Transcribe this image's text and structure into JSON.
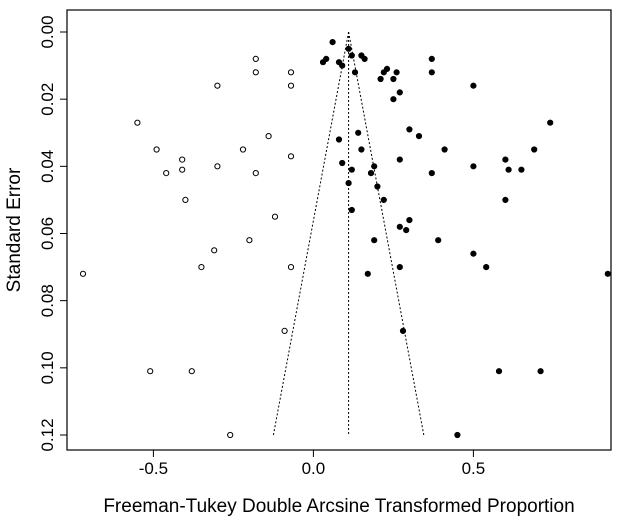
{
  "chart_data": {
    "type": "scatter",
    "title": "",
    "xlabel": "Freeman-Tukey Double Arcsine Transformed Proportion",
    "ylabel": "Standard Error",
    "xlim": [
      -0.77,
      0.93
    ],
    "ylim": [
      0.0,
      0.122
    ],
    "y_reversed": true,
    "x_ticks": [
      -0.5,
      0.0,
      0.5
    ],
    "x_tick_labels": [
      "-0.5",
      "0.0",
      "0.5"
    ],
    "y_ticks": [
      0.0,
      0.02,
      0.04,
      0.06,
      0.08,
      0.1,
      0.12
    ],
    "y_tick_labels": [
      "0.00",
      "0.02",
      "0.04",
      "0.06",
      "0.08",
      "0.10",
      "0.12"
    ],
    "y_tick_label_rotation": "vertical",
    "grid": false,
    "legend": "none",
    "pooled_estimate": 0.11,
    "funnel": {
      "apex": [
        0.11,
        0.0
      ],
      "base_se": 0.12,
      "lower_x": -0.125,
      "upper_x": 0.345
    },
    "series": [
      {
        "marker": "filled-circle",
        "color": "#000000",
        "points": [
          [
            0.06,
            0.003
          ],
          [
            0.11,
            0.005
          ],
          [
            0.12,
            0.007
          ],
          [
            0.15,
            0.007
          ],
          [
            0.04,
            0.008
          ],
          [
            0.16,
            0.008
          ],
          [
            0.03,
            0.009
          ],
          [
            0.08,
            0.009
          ],
          [
            0.37,
            0.008
          ],
          [
            0.09,
            0.01
          ],
          [
            0.23,
            0.011
          ],
          [
            0.13,
            0.012
          ],
          [
            0.22,
            0.012
          ],
          [
            0.26,
            0.012
          ],
          [
            0.37,
            0.012
          ],
          [
            0.21,
            0.014
          ],
          [
            0.25,
            0.014
          ],
          [
            0.5,
            0.016
          ],
          [
            0.27,
            0.018
          ],
          [
            0.25,
            0.02
          ],
          [
            0.74,
            0.027
          ],
          [
            0.3,
            0.029
          ],
          [
            0.14,
            0.03
          ],
          [
            0.33,
            0.031
          ],
          [
            0.08,
            0.032
          ],
          [
            0.15,
            0.035
          ],
          [
            0.41,
            0.035
          ],
          [
            0.69,
            0.035
          ],
          [
            0.6,
            0.038
          ],
          [
            0.27,
            0.038
          ],
          [
            0.09,
            0.039
          ],
          [
            0.19,
            0.04
          ],
          [
            0.5,
            0.04
          ],
          [
            0.61,
            0.041
          ],
          [
            0.65,
            0.041
          ],
          [
            0.12,
            0.041
          ],
          [
            0.18,
            0.042
          ],
          [
            0.37,
            0.042
          ],
          [
            0.11,
            0.045
          ],
          [
            0.2,
            0.046
          ],
          [
            0.22,
            0.05
          ],
          [
            0.6,
            0.05
          ],
          [
            0.12,
            0.053
          ],
          [
            0.3,
            0.056
          ],
          [
            0.27,
            0.058
          ],
          [
            0.19,
            0.062
          ],
          [
            0.29,
            0.059
          ],
          [
            0.39,
            0.062
          ],
          [
            0.5,
            0.066
          ],
          [
            0.27,
            0.07
          ],
          [
            0.54,
            0.07
          ],
          [
            0.17,
            0.072
          ],
          [
            0.92,
            0.072
          ],
          [
            0.28,
            0.089
          ],
          [
            0.58,
            0.101
          ],
          [
            0.71,
            0.101
          ],
          [
            0.45,
            0.12
          ]
        ]
      },
      {
        "marker": "open-circle",
        "color": "#000000",
        "points": [
          [
            -0.18,
            0.008
          ],
          [
            -0.18,
            0.012
          ],
          [
            -0.07,
            0.012
          ],
          [
            -0.3,
            0.016
          ],
          [
            -0.07,
            0.016
          ],
          [
            -0.55,
            0.027
          ],
          [
            -0.14,
            0.031
          ],
          [
            -0.49,
            0.035
          ],
          [
            -0.22,
            0.035
          ],
          [
            -0.07,
            0.037
          ],
          [
            -0.41,
            0.038
          ],
          [
            -0.3,
            0.04
          ],
          [
            -0.41,
            0.041
          ],
          [
            -0.46,
            0.042
          ],
          [
            -0.18,
            0.042
          ],
          [
            -0.4,
            0.05
          ],
          [
            -0.12,
            0.055
          ],
          [
            -0.2,
            0.062
          ],
          [
            -0.31,
            0.065
          ],
          [
            -0.07,
            0.07
          ],
          [
            -0.35,
            0.07
          ],
          [
            -0.72,
            0.072
          ],
          [
            -0.09,
            0.089
          ],
          [
            -0.51,
            0.101
          ],
          [
            -0.38,
            0.101
          ],
          [
            -0.26,
            0.12
          ]
        ]
      }
    ]
  }
}
